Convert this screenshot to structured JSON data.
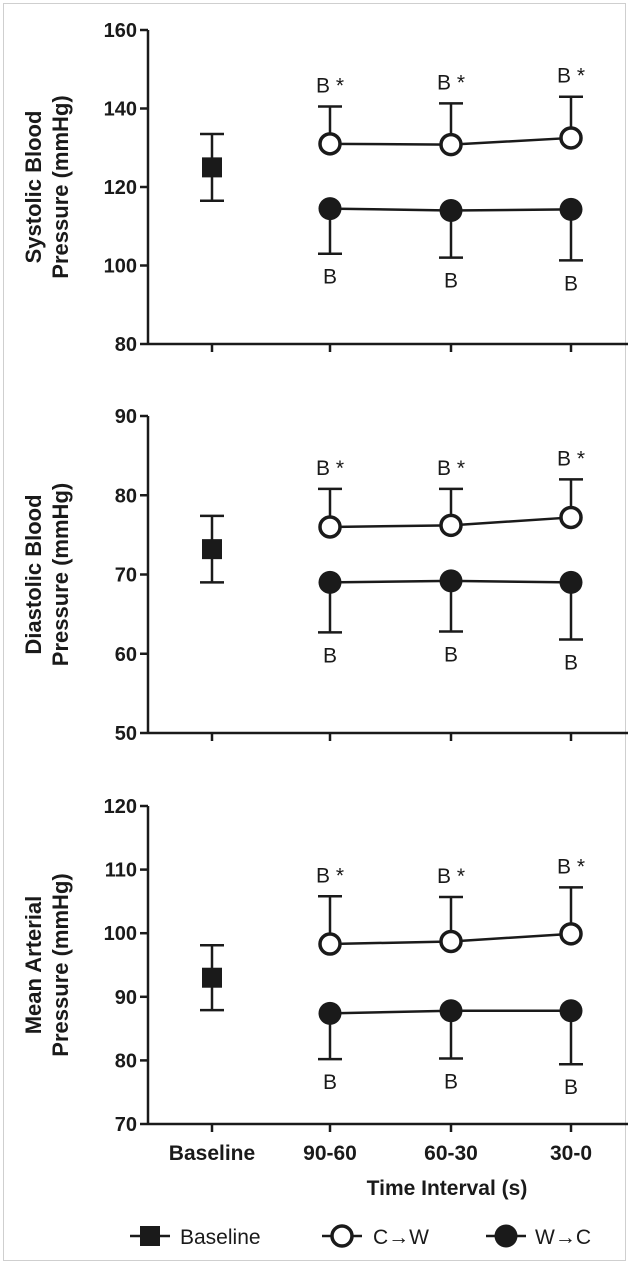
{
  "chart_data": [
    {
      "type": "line",
      "ylabel": [
        "Systolic Blood",
        "Pressure (mmHg)"
      ],
      "ylim": [
        80,
        160
      ],
      "yticks": [
        80,
        100,
        120,
        140,
        160
      ],
      "categories": [
        "Baseline",
        "90-60",
        "60-30",
        "30-0"
      ],
      "baseline": {
        "value": 125,
        "err": 8.5
      },
      "series": [
        {
          "name": "C→W",
          "marker": "open-circle",
          "x": [
            "90-60",
            "60-30",
            "30-0"
          ],
          "values": [
            131,
            130.8,
            132.5
          ],
          "err": [
            9.5,
            10.5,
            10.5
          ],
          "annot": [
            "B *",
            "B *",
            "B *"
          ],
          "annot_side": "above"
        },
        {
          "name": "W→C",
          "marker": "filled-circle",
          "x": [
            "90-60",
            "60-30",
            "30-0"
          ],
          "values": [
            114.5,
            114,
            114.3
          ],
          "err": [
            11.5,
            12,
            13
          ],
          "annot": [
            "B",
            "B",
            "B"
          ],
          "annot_side": "below"
        }
      ]
    },
    {
      "type": "line",
      "ylabel": [
        "Diastolic Blood",
        "Pressure (mmHg)"
      ],
      "ylim": [
        50,
        90
      ],
      "yticks": [
        50,
        60,
        70,
        80,
        90
      ],
      "categories": [
        "Baseline",
        "90-60",
        "60-30",
        "30-0"
      ],
      "baseline": {
        "value": 73.2,
        "err": 4.2
      },
      "series": [
        {
          "name": "C→W",
          "marker": "open-circle",
          "x": [
            "90-60",
            "60-30",
            "30-0"
          ],
          "values": [
            76,
            76.2,
            77.2
          ],
          "err": [
            4.8,
            4.6,
            4.8
          ],
          "annot": [
            "B *",
            "B *",
            "B *"
          ],
          "annot_side": "above"
        },
        {
          "name": "W→C",
          "marker": "filled-circle",
          "x": [
            "90-60",
            "60-30",
            "30-0"
          ],
          "values": [
            69,
            69.2,
            69
          ],
          "err": [
            6.3,
            6.4,
            7.2
          ],
          "annot": [
            "B",
            "B",
            "B"
          ],
          "annot_side": "below"
        }
      ]
    },
    {
      "type": "line",
      "ylabel": [
        "Mean Arterial",
        "Pressure (mmHg)"
      ],
      "ylim": [
        70,
        120
      ],
      "yticks": [
        70,
        80,
        90,
        100,
        110,
        120
      ],
      "categories": [
        "Baseline",
        "90-60",
        "60-30",
        "30-0"
      ],
      "xlabel": "Time Interval (s)",
      "baseline": {
        "value": 93,
        "err": 5.1
      },
      "series": [
        {
          "name": "C→W",
          "marker": "open-circle",
          "x": [
            "90-60",
            "60-30",
            "30-0"
          ],
          "values": [
            98.3,
            98.7,
            99.9
          ],
          "err": [
            7.5,
            7,
            7.3
          ],
          "annot": [
            "B *",
            "B *",
            "B *"
          ],
          "annot_side": "above"
        },
        {
          "name": "W→C",
          "marker": "filled-circle",
          "x": [
            "90-60",
            "60-30",
            "30-0"
          ],
          "values": [
            87.4,
            87.8,
            87.8
          ],
          "err": [
            7.2,
            7.5,
            8.4
          ],
          "annot": [
            "B",
            "B",
            "B"
          ],
          "annot_side": "below"
        }
      ]
    }
  ],
  "legend": {
    "placement": "bottom",
    "items": [
      {
        "label": "Baseline",
        "marker": "filled-square"
      },
      {
        "label": "C→W",
        "marker": "open-circle"
      },
      {
        "label": "W→C",
        "marker": "filled-circle"
      }
    ]
  },
  "colors": {
    "ink": "#1a1a1a",
    "background": "#ffffff",
    "border": "#cfcfcf"
  }
}
